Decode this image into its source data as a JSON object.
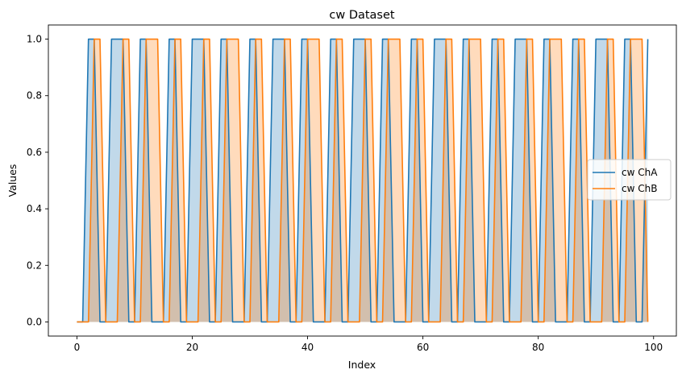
{
  "chart_data": {
    "type": "line",
    "title": "cw Dataset",
    "xlabel": "Index",
    "ylabel": "Values",
    "xlim": [
      -4.95,
      103.95
    ],
    "ylim": [
      -0.05,
      1.05
    ],
    "x_ticks": [
      0,
      20,
      40,
      60,
      80,
      100
    ],
    "y_ticks": [
      0.0,
      0.2,
      0.4,
      0.6,
      0.8,
      1.0
    ],
    "x_tick_labels": [
      "0",
      "20",
      "40",
      "60",
      "80",
      "100"
    ],
    "y_tick_labels": [
      "0.0",
      "0.2",
      "0.4",
      "0.6",
      "0.8",
      "1.0"
    ],
    "grid": false,
    "legend_position": "center-right",
    "fill_to_zero": true,
    "series": [
      {
        "name": "cw ChA",
        "color": "#1f77b4",
        "fill_color": "#1f77b4",
        "x": [
          0,
          1,
          2,
          3,
          4,
          5,
          6,
          7,
          8,
          9,
          10,
          11,
          12,
          13,
          14,
          15,
          16,
          17,
          18,
          19,
          20,
          21,
          22,
          23,
          24,
          25,
          26,
          27,
          28,
          29,
          30,
          31,
          32,
          33,
          34,
          35,
          36,
          37,
          38,
          39,
          40,
          41,
          42,
          43,
          44,
          45,
          46,
          47,
          48,
          49,
          50,
          51,
          52,
          53,
          54,
          55,
          56,
          57,
          58,
          59,
          60,
          61,
          62,
          63,
          64,
          65,
          66,
          67,
          68,
          69,
          70,
          71,
          72,
          73,
          74,
          75,
          76,
          77,
          78,
          79,
          80,
          81,
          82,
          83,
          84,
          85,
          86,
          87,
          88,
          89,
          90,
          91,
          92,
          93,
          94,
          95,
          96,
          97,
          98,
          99
        ],
        "values": [
          0,
          0,
          1,
          1,
          0,
          0,
          1,
          1,
          1,
          0,
          0,
          1,
          1,
          0,
          0,
          0,
          1,
          1,
          0,
          0,
          1,
          1,
          1,
          0,
          0,
          1,
          1,
          0,
          0,
          0,
          1,
          1,
          0,
          0,
          1,
          1,
          1,
          0,
          0,
          1,
          1,
          0,
          0,
          0,
          1,
          1,
          0,
          0,
          1,
          1,
          1,
          0,
          0,
          1,
          1,
          0,
          0,
          0,
          1,
          1,
          0,
          0,
          1,
          1,
          1,
          0,
          0,
          1,
          1,
          0,
          0,
          0,
          1,
          1,
          0,
          0,
          1,
          1,
          1,
          0,
          0,
          1,
          1,
          0,
          0,
          0,
          1,
          1,
          0,
          0,
          1,
          1,
          1,
          0,
          0,
          1,
          1,
          0,
          0,
          1
        ]
      },
      {
        "name": "cw ChB",
        "color": "#ff7f0e",
        "fill_color": "#ff7f0e",
        "x": [
          0,
          1,
          2,
          3,
          4,
          5,
          6,
          7,
          8,
          9,
          10,
          11,
          12,
          13,
          14,
          15,
          16,
          17,
          18,
          19,
          20,
          21,
          22,
          23,
          24,
          25,
          26,
          27,
          28,
          29,
          30,
          31,
          32,
          33,
          34,
          35,
          36,
          37,
          38,
          39,
          40,
          41,
          42,
          43,
          44,
          45,
          46,
          47,
          48,
          49,
          50,
          51,
          52,
          53,
          54,
          55,
          56,
          57,
          58,
          59,
          60,
          61,
          62,
          63,
          64,
          65,
          66,
          67,
          68,
          69,
          70,
          71,
          72,
          73,
          74,
          75,
          76,
          77,
          78,
          79,
          80,
          81,
          82,
          83,
          84,
          85,
          86,
          87,
          88,
          89,
          90,
          91,
          92,
          93,
          94,
          95,
          96,
          97,
          98,
          99
        ],
        "values": [
          0,
          0,
          0,
          1,
          1,
          0,
          0,
          0,
          1,
          1,
          0,
          0,
          1,
          1,
          1,
          0,
          0,
          1,
          1,
          0,
          0,
          0,
          1,
          1,
          0,
          0,
          1,
          1,
          1,
          0,
          0,
          1,
          1,
          0,
          0,
          0,
          1,
          1,
          0,
          0,
          1,
          1,
          1,
          0,
          0,
          1,
          1,
          0,
          0,
          0,
          1,
          1,
          0,
          0,
          1,
          1,
          1,
          0,
          0,
          1,
          1,
          0,
          0,
          0,
          1,
          1,
          0,
          0,
          1,
          1,
          1,
          0,
          0,
          1,
          1,
          0,
          0,
          0,
          1,
          1,
          0,
          0,
          1,
          1,
          1,
          0,
          0,
          1,
          1,
          0,
          0,
          0,
          1,
          1,
          0,
          0,
          1,
          1,
          1,
          0
        ]
      }
    ]
  }
}
